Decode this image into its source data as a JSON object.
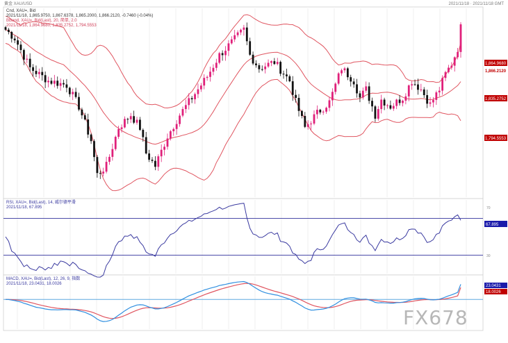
{
  "topbar": {
    "left": "黄金 XAU/USD",
    "right": "2021/11/18 · 2021/11/18 GMT"
  },
  "main_panel": {
    "legend": [
      {
        "text": "Cnd, XAU=, Bid",
        "color": "#333333"
      },
      {
        "text": "2021/11/18, 1,865.9750, 1,867.6378, 1,865.2000, 1,866.2120, -0.7460 (-0.04%)",
        "color": "#333333"
      },
      {
        "text": "BBand, XAU=, Bid(Last), 20, 简单, 2.0",
        "color": "#d0405a"
      },
      {
        "text": "2021/11/18, 1,864.9680, 1,835.2752, 1,794.5553",
        "color": "#d0405a"
      }
    ],
    "price_labels": [
      {
        "text": "1,866.2120",
        "color": "#c00000"
      },
      {
        "text": "1,864.9680",
        "color": "#c00000"
      },
      {
        "text": "1,835.2752",
        "color": "#c00000"
      },
      {
        "text": "1,794.5553",
        "color": "#c00000"
      }
    ]
  },
  "rsi_panel": {
    "legend": [
      {
        "text": "RSI, XAU=, Bid(Last), 14, 威尔德平滑",
        "color": "#3a3aa0"
      },
      {
        "text": "2021/11/18, 67.895",
        "color": "#3a3aa0"
      }
    ],
    "value_label": "67.895",
    "levels": [
      "70",
      "30"
    ]
  },
  "macd_panel": {
    "legend": [
      {
        "text": "MACD, XAU=, Bid(Last), 12, 26, 9, 指数",
        "color": "#3a3aa0"
      },
      {
        "text": "2021/11/18, 23.0431, 18.0026",
        "color": "#3a3aa0"
      }
    ],
    "value_labels": [
      "23.0431",
      "18.0026"
    ]
  },
  "watermark": "FX678",
  "colors": {
    "up": "#e0207a",
    "down": "#111111",
    "bband": "#e05560",
    "rsi": "#3a3aa0",
    "rsi_level": "#4a4aa8",
    "macd_line": "#2f8fe0",
    "signal_line": "#e05560",
    "zero_line": "#5fa8e0",
    "grid": "#e4e4e4",
    "axis_tag_blue": "#1a1aaa"
  },
  "chart_data": [
    {
      "type": "candlestick",
      "title": "Cnd, XAU=, Bid",
      "instrument": "XAU=",
      "ylim": [
        1665,
        1885
      ],
      "series": [
        {
          "name": "BBand",
          "params": "20, 简单, 2.0",
          "values": []
        }
      ],
      "note_last": {
        "date": "2021/11/18",
        "open": 1865.975,
        "high": 1867.6378,
        "low": 1865.2,
        "close": 1866.212
      }
    },
    {
      "type": "line",
      "title": "RSI, XAU=, Bid(Last), 14, 威尔德平滑",
      "ylim": [
        10,
        90
      ],
      "levels": [
        70,
        30
      ],
      "last": 67.895,
      "values": []
    },
    {
      "type": "line",
      "title": "MACD, XAU=, Bid(Last), 12, 26, 9, 指数",
      "ylim": [
        -45,
        35
      ],
      "series": [
        {
          "name": "MACD",
          "values": []
        },
        {
          "name": "Signal",
          "values": []
        }
      ],
      "last": [
        23.0431,
        18.0026
      ]
    }
  ]
}
